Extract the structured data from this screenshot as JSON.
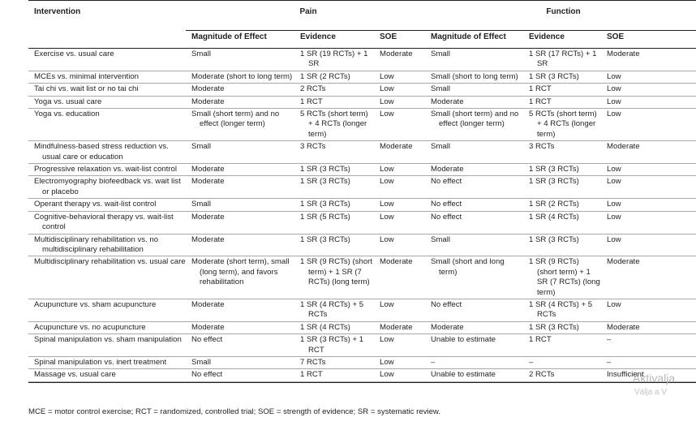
{
  "table": {
    "headers": {
      "intervention": "Intervention",
      "pain": "Pain",
      "function": "Function",
      "magnitude": "Magnitude of Effect",
      "evidence": "Evidence",
      "soe": "SOE"
    },
    "rows": [
      [
        "Exercise vs. usual care",
        "Small",
        "1 SR (19 RCTs) + 1 SR",
        "Moderate",
        "Small",
        "1 SR (17 RCTs) + 1 SR",
        "Moderate"
      ],
      [
        "MCEs vs. minimal intervention",
        "Moderate (short to long term)",
        "1 SR (2 RCTs)",
        "Low",
        "Small (short to long term)",
        "1 SR (3 RCTs)",
        "Low"
      ],
      [
        "Tai chi vs. wait list or no tai chi",
        "Moderate",
        "2 RCTs",
        "Low",
        "Small",
        "1 RCT",
        "Low"
      ],
      [
        "Yoga vs. usual care",
        "Moderate",
        "1 RCT",
        "Low",
        "Moderate",
        "1 RCT",
        "Low"
      ],
      [
        "Yoga vs. education",
        "Small (short term) and no effect (longer term)",
        "5 RCTs (short term) + 4 RCTs (longer term)",
        "Low",
        "Small (short term) and no effect (longer term)",
        "5 RCTs (short term) + 4 RCTs (longer term)",
        "Low"
      ],
      [
        "Mindfulness-based stress reduction vs. usual care or education",
        "Small",
        "3 RCTs",
        "Moderate",
        "Small",
        "3 RCTs",
        "Moderate"
      ],
      [
        "Progressive relaxation vs. wait-list control",
        "Moderate",
        "1 SR (3 RCTs)",
        "Low",
        "Moderate",
        "1 SR (3 RCTs)",
        "Low"
      ],
      [
        "Electromyography biofeedback vs. wait list or placebo",
        "Moderate",
        "1 SR (3 RCTs)",
        "Low",
        "No effect",
        "1 SR (3 RCTs)",
        "Low"
      ],
      [
        "Operant therapy vs. wait-list control",
        "Small",
        "1 SR (3 RCTs)",
        "Low",
        "No effect",
        "1 SR (2 RCTs)",
        "Low"
      ],
      [
        "Cognitive-behavioral therapy vs. wait-list control",
        "Moderate",
        "1 SR (5 RCTs)",
        "Low",
        "No effect",
        "1 SR (4 RCTs)",
        "Low"
      ],
      [
        "Multidisciplinary rehabilitation vs. no multidisciplinary rehabilitation",
        "Moderate",
        "1 SR (3 RCTs)",
        "Low",
        "Small",
        "1 SR (3 RCTs)",
        "Low"
      ],
      [
        "Multidisciplinary rehabilitation vs. usual care",
        "Moderate (short term), small (long term), and favors rehabilitation",
        "1 SR (9 RCTs) (short term) + 1 SR (7 RCTs) (long term)",
        "Moderate",
        "Small (short and long term)",
        "1 SR (9 RCTs) (short term) + 1 SR (7 RCTs) (long term)",
        "Moderate"
      ],
      [
        "Acupuncture vs. sham acupuncture",
        "Moderate",
        "1 SR (4 RCTs) + 5 RCTs",
        "Low",
        "No effect",
        "1 SR (4 RCTs) + 5 RCTs",
        "Low"
      ],
      [
        "Acupuncture vs. no acupuncture",
        "Moderate",
        "1 SR (4 RCTs)",
        "Moderate",
        "Moderate",
        "1 SR (3 RCTs)",
        "Moderate"
      ],
      [
        "Spinal manipulation vs. sham manipulation",
        "No effect",
        "1 SR (3 RCTs) + 1 RCT",
        "Low",
        "Unable to estimate",
        "1 RCT",
        "–"
      ],
      [
        "Spinal manipulation vs. inert treatment",
        "Small",
        "7 RCTs",
        "Low",
        "–",
        "–",
        "–"
      ],
      [
        "Massage vs. usual care",
        "No effect",
        "1 RCT",
        "Low",
        "Unable to estimate",
        "2 RCTs",
        "Insufficient"
      ]
    ]
  },
  "footnote": "MCE = motor control exercise; RCT = randomized, controlled trial; SOE = strength of evidence; SR = systematic review.",
  "watermark": {
    "line1": "Aktivalja",
    "line2": "Válja a V"
  }
}
